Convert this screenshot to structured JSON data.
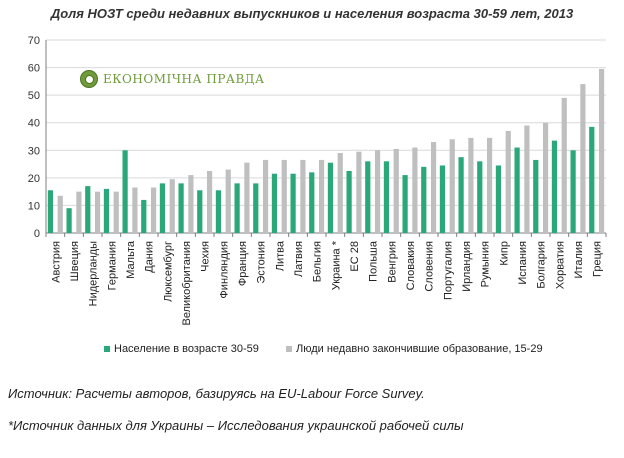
{
  "title": "Доля НОЗТ среди недавних выпускников и населения возраста 30-59 лет, 2013",
  "logo": {
    "text": "ЕКОНОМІЧНА ПРАВДА"
  },
  "notes": {
    "source": "Источник: Расчеты авторов, базируясь на EU-Labour Force Survey.",
    "ukraine_source": "*Источник данных для Украины – Исследования украинской рабочей силы"
  },
  "colors": {
    "series1": "#2aa87a",
    "series2": "#bfbfbf",
    "grid": "#d9d9d9",
    "axis": "#7f7f7f"
  },
  "chart_data": {
    "type": "bar",
    "title": "Доля НОЗТ среди недавних выпускников и населения возраста 30-59 лет, 2013",
    "xlabel": "",
    "ylabel": "",
    "ylim": [
      0,
      70
    ],
    "yticks": [
      0,
      10,
      20,
      30,
      40,
      50,
      60,
      70
    ],
    "grid": true,
    "legend_position": "bottom",
    "categories": [
      "Австрия",
      "Швеция",
      "Нидерланды",
      "Германия",
      "Мальта",
      "Дания",
      "Люксембург",
      "Великобритания",
      "Чехия",
      "Финляндия",
      "Франция",
      "Эстония",
      "Литва",
      "Латвия",
      "Бельгия",
      "Украина *",
      "ЕС 28",
      "Польша",
      "Венгрия",
      "Словакия",
      "Словения",
      "Португалия",
      "Ирландия",
      "Румыния",
      "Кипр",
      "Испания",
      "Болгария",
      "Хорватия",
      "Италия",
      "Греция"
    ],
    "series": [
      {
        "name": "Население в возрасте 30-59",
        "values": [
          15.5,
          9,
          17,
          16,
          30,
          12,
          18,
          18,
          15.5,
          15.5,
          18,
          18,
          21.5,
          21.5,
          22,
          25.5,
          22.5,
          26,
          26,
          21,
          24,
          24.5,
          27.5,
          26,
          24.5,
          31,
          26.5,
          33.5,
          30,
          38.5
        ]
      },
      {
        "name": "Люди недавно закончившие образование, 15-29",
        "values": [
          13.5,
          15,
          15,
          15,
          16.5,
          16.5,
          19.5,
          21,
          22.5,
          23,
          25.5,
          26.5,
          26.5,
          26.5,
          26.5,
          29,
          29.5,
          30,
          30.5,
          31,
          33,
          34,
          34.5,
          34.5,
          37,
          39,
          40,
          49,
          54,
          59.5
        ]
      }
    ]
  }
}
